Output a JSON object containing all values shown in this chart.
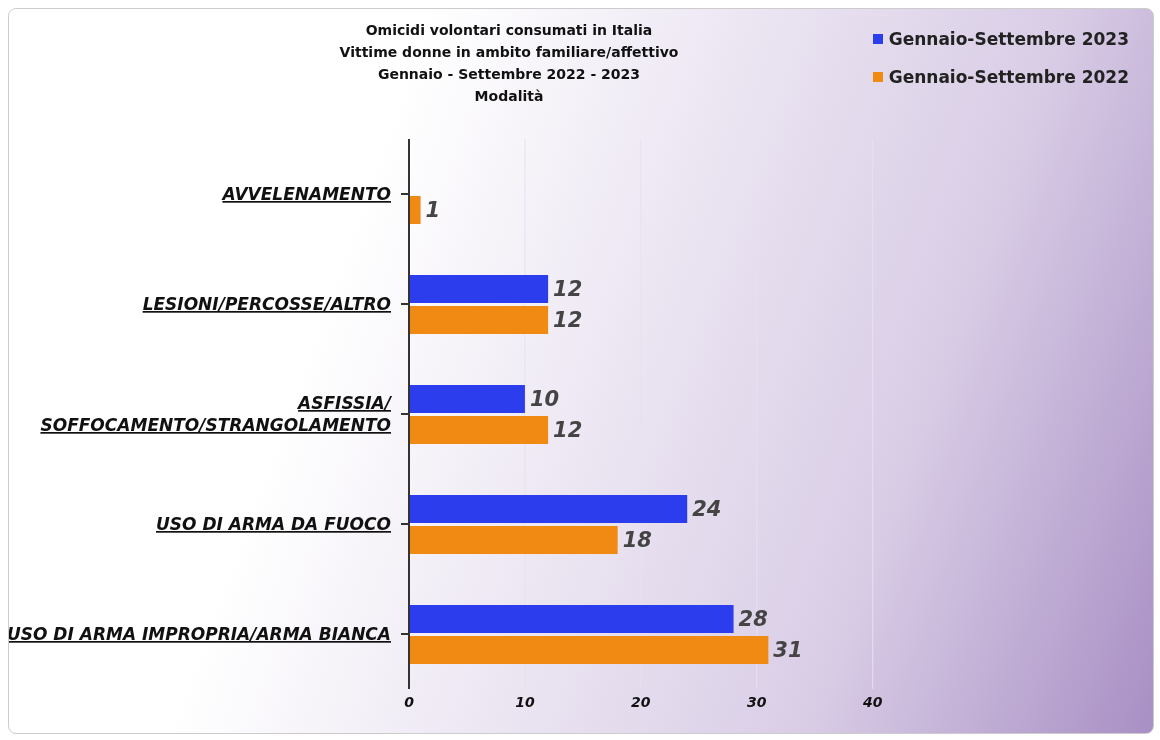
{
  "chart_data": {
    "type": "bar",
    "orientation": "horizontal",
    "title": "Omicidi volontari consumati in Italia",
    "subtitle": "Vittime donne in ambito familiare/affettivo\nGennaio - Settembre 2022 - 2023\nModalità",
    "categories": [
      "AVVELENAMENTO",
      "LESIONI/PERCOSSE/ALTRO",
      "ASFISSIA/\nSOFFOCAMENTO/STRANGOLAMENTO",
      "USO DI ARMA DA FUOCO",
      "USO DI ARMA IMPROPRIA/ARMA BIANCA"
    ],
    "series": [
      {
        "name": "Gennaio-Settembre 2023",
        "color": "#2b3ded",
        "values": [
          null,
          12,
          10,
          24,
          28
        ]
      },
      {
        "name": "Gennaio-Settembre 2022",
        "color": "#f08a12",
        "values": [
          1,
          12,
          12,
          18,
          31
        ]
      }
    ],
    "xlim": [
      0,
      40
    ],
    "xticks": [
      0,
      10,
      20,
      30,
      40
    ],
    "grid": "x",
    "legend": "top right",
    "data_labels": true
  }
}
